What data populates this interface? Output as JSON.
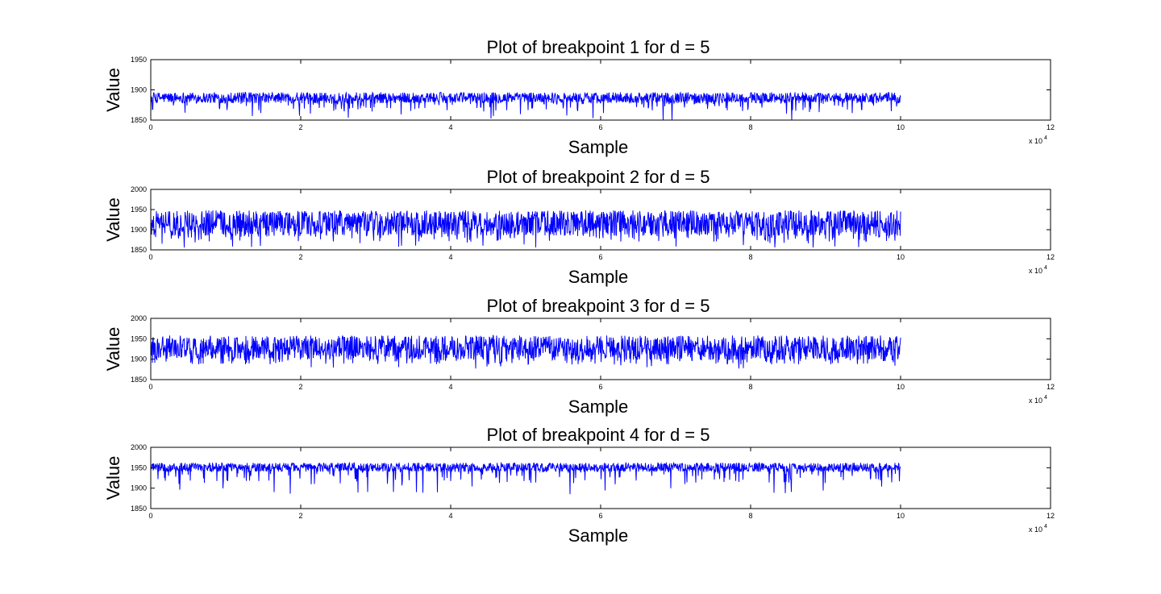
{
  "colors": {
    "background": "#ffffff",
    "series": "#0000ff",
    "axis": "#000000"
  },
  "chart_data": [
    {
      "type": "line",
      "title": "Plot of breakpoint 1 for d = 5",
      "xlabel": "Sample",
      "ylabel": "Value",
      "xlim": [
        0,
        120000
      ],
      "ylim": [
        1850,
        1950
      ],
      "xticks": [
        0,
        20000,
        40000,
        60000,
        80000,
        100000,
        120000
      ],
      "xtick_labels": [
        "0",
        "2",
        "4",
        "6",
        "8",
        "10",
        "12"
      ],
      "x_multiplier": {
        "base": "x 10",
        "exponent": "4"
      },
      "yticks": [
        1850,
        1900,
        1950
      ],
      "ytick_labels": [
        "1850",
        "1900",
        "1950"
      ],
      "series": [
        {
          "x_range": [
            0,
            100000
          ],
          "baseline": 1887,
          "band_low": 1878,
          "band_high": 1896,
          "dip_min": 1850,
          "color": "#0000ff"
        }
      ]
    },
    {
      "type": "line",
      "title": "Plot of breakpoint 2 for d = 5",
      "xlabel": "Sample",
      "ylabel": "Value",
      "xlim": [
        0,
        120000
      ],
      "ylim": [
        1850,
        2000
      ],
      "xticks": [
        0,
        20000,
        40000,
        60000,
        80000,
        100000,
        120000
      ],
      "xtick_labels": [
        "0",
        "2",
        "4",
        "6",
        "8",
        "10",
        "12"
      ],
      "x_multiplier": {
        "base": "x 10",
        "exponent": "4"
      },
      "yticks": [
        1850,
        1900,
        1950,
        2000
      ],
      "ytick_labels": [
        "1850",
        "1900",
        "1950",
        "2000"
      ],
      "series": [
        {
          "x_range": [
            0,
            100000
          ],
          "baseline": 1910,
          "band_low": 1885,
          "band_high": 1948,
          "dip_min": 1855,
          "color": "#0000ff"
        }
      ]
    },
    {
      "type": "line",
      "title": "Plot of breakpoint 3 for d = 5",
      "xlabel": "Sample",
      "ylabel": "Value",
      "xlim": [
        0,
        120000
      ],
      "ylim": [
        1850,
        2000
      ],
      "xticks": [
        0,
        20000,
        40000,
        60000,
        80000,
        100000,
        120000
      ],
      "xtick_labels": [
        "0",
        "2",
        "4",
        "6",
        "8",
        "10",
        "12"
      ],
      "x_multiplier": {
        "base": "x 10",
        "exponent": "4"
      },
      "yticks": [
        1850,
        1900,
        1950,
        2000
      ],
      "ytick_labels": [
        "1850",
        "1900",
        "1950",
        "2000"
      ],
      "series": [
        {
          "x_range": [
            0,
            100000
          ],
          "baseline": 1932,
          "band_low": 1898,
          "band_high": 1958,
          "dip_min": 1876,
          "color": "#0000ff"
        }
      ]
    },
    {
      "type": "line",
      "title": "Plot of breakpoint 4 for d = 5",
      "xlabel": "Sample",
      "ylabel": "Value",
      "xlim": [
        0,
        120000
      ],
      "ylim": [
        1850,
        2000
      ],
      "xticks": [
        0,
        20000,
        40000,
        60000,
        80000,
        100000,
        120000
      ],
      "xtick_labels": [
        "0",
        "2",
        "4",
        "6",
        "8",
        "10",
        "12"
      ],
      "x_multiplier": {
        "base": "x 10",
        "exponent": "4"
      },
      "yticks": [
        1850,
        1900,
        1950,
        2000
      ],
      "ytick_labels": [
        "1850",
        "1900",
        "1950",
        "2000"
      ],
      "series": [
        {
          "x_range": [
            0,
            100000
          ],
          "baseline": 1952,
          "band_low": 1940,
          "band_high": 1962,
          "dip_min": 1885,
          "color": "#0000ff"
        }
      ]
    }
  ]
}
